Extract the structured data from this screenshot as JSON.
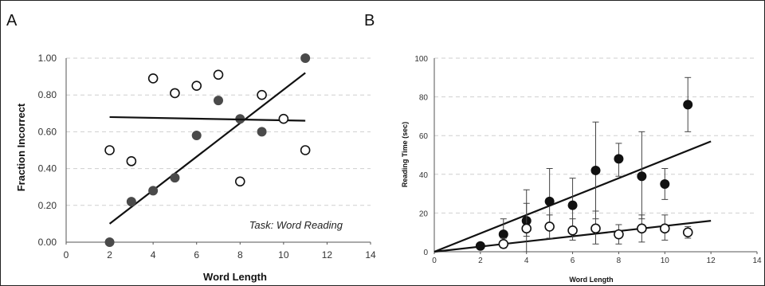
{
  "chart_data": [
    {
      "panel_label": "A",
      "type": "scatter",
      "xlabel": "Word Length",
      "ylabel": "Fraction Incorrect",
      "xlim": [
        0,
        14
      ],
      "ylim": [
        0,
        1
      ],
      "xticks": [
        "0",
        "2",
        "4",
        "6",
        "8",
        "10",
        "12",
        "14"
      ],
      "yticks": [
        "0.00",
        "0.20",
        "0.40",
        "0.60",
        "0.80",
        "1.00"
      ],
      "grid": true,
      "annotation": "Task: Word Reading",
      "series": [
        {
          "marker": "filled",
          "x": [
            2,
            3,
            4,
            5,
            6,
            7,
            8,
            9,
            11
          ],
          "y": [
            0.0,
            0.22,
            0.28,
            0.35,
            0.58,
            0.77,
            0.67,
            0.6,
            1.0
          ],
          "trendline": [
            [
              2,
              0.1
            ],
            [
              11,
              0.92
            ]
          ]
        },
        {
          "marker": "open",
          "x": [
            2,
            3,
            4,
            5,
            6,
            7,
            8,
            9,
            10,
            11
          ],
          "y": [
            0.5,
            0.44,
            0.89,
            0.81,
            0.85,
            0.91,
            0.33,
            0.8,
            0.67,
            0.5
          ],
          "trendline": [
            [
              2,
              0.68
            ],
            [
              11,
              0.66
            ]
          ]
        }
      ]
    },
    {
      "panel_label": "B",
      "type": "scatter",
      "xlabel": "Word Length",
      "ylabel": "Reading Time (sec)",
      "xlim": [
        0,
        14
      ],
      "ylim": [
        0,
        100
      ],
      "xticks": [
        "0",
        "2",
        "4",
        "6",
        "8",
        "10",
        "12",
        "14"
      ],
      "yticks": [
        "0",
        "20",
        "40",
        "60",
        "80",
        "100"
      ],
      "grid": true,
      "series": [
        {
          "marker": "filled",
          "x": [
            2,
            3,
            4,
            5,
            6,
            7,
            8,
            9,
            10,
            11
          ],
          "y": [
            3,
            9,
            16,
            26,
            24,
            42,
            48,
            39,
            35,
            76
          ],
          "err_low": [
            1,
            4,
            8,
            12,
            12,
            25,
            9,
            22,
            8,
            14
          ],
          "err_high": [
            1,
            8,
            16,
            17,
            14,
            25,
            8,
            23,
            8,
            14
          ],
          "trendline": [
            [
              0,
              0
            ],
            [
              12,
              57
            ]
          ]
        },
        {
          "marker": "open",
          "x": [
            3,
            4,
            5,
            6,
            7,
            8,
            9,
            10,
            11
          ],
          "y": [
            4,
            12,
            13,
            11,
            12,
            9,
            12,
            12,
            10
          ],
          "err_low": [
            2,
            12,
            6,
            5,
            8,
            5,
            7,
            6,
            3
          ],
          "err_high": [
            3,
            13,
            6,
            6,
            9,
            5,
            7,
            7,
            3
          ],
          "trendline": [
            [
              0,
              0
            ],
            [
              12,
              16
            ]
          ]
        }
      ]
    }
  ]
}
